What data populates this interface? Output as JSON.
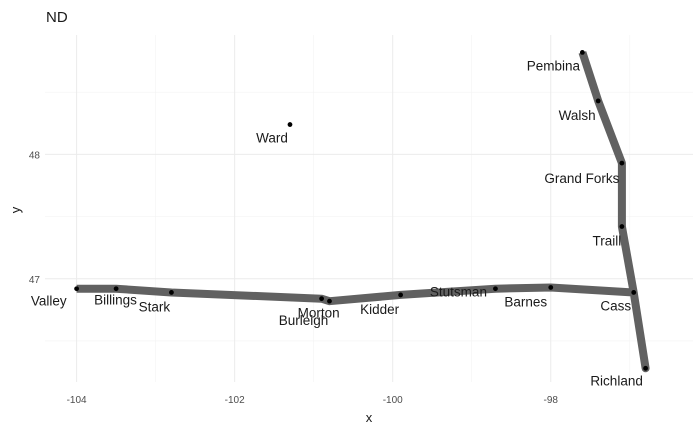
{
  "chart_data": {
    "type": "scatter",
    "title": "ND",
    "xlabel": "x",
    "ylabel": "y",
    "xlim": [
      -104.4,
      -96.2
    ],
    "ylim": [
      46.17,
      48.96
    ],
    "x_ticks": [
      -104,
      -102,
      -100,
      -98
    ],
    "x_tick_labels": [
      "-104",
      "-102",
      "-100",
      "-98"
    ],
    "y_ticks": [
      47,
      48
    ],
    "y_tick_labels": [
      "47",
      "48"
    ],
    "grid": true,
    "legend": "none",
    "points": [
      {
        "label": "Valley",
        "x": -104.0,
        "y": 46.92
      },
      {
        "label": "Billings",
        "x": -103.5,
        "y": 46.92
      },
      {
        "label": "Stark",
        "x": -102.8,
        "y": 46.89
      },
      {
        "label": "Morton",
        "x": -100.9,
        "y": 46.84
      },
      {
        "label": "Burleigh",
        "x": -100.8,
        "y": 46.82
      },
      {
        "label": "Kidder",
        "x": -99.9,
        "y": 46.87
      },
      {
        "label": "Stutsman",
        "x": -98.7,
        "y": 46.92
      },
      {
        "label": "Barnes",
        "x": -98.0,
        "y": 46.93
      },
      {
        "label": "Cass",
        "x": -96.95,
        "y": 46.89
      },
      {
        "label": "Richland",
        "x": -96.8,
        "y": 46.28
      },
      {
        "label": "Traill",
        "x": -97.1,
        "y": 47.42
      },
      {
        "label": "Grand Forks",
        "x": -97.1,
        "y": 47.93
      },
      {
        "label": "Walsh",
        "x": -97.4,
        "y": 48.43
      },
      {
        "label": "Pembina",
        "x": -97.6,
        "y": 48.82
      },
      {
        "label": "Ward",
        "x": -101.3,
        "y": 48.24
      }
    ],
    "path_order": [
      "Valley",
      "Billings",
      "Stark",
      "Morton",
      "Burleigh",
      "Kidder",
      "Stutsman",
      "Barnes",
      "Cass",
      "Richland",
      "Cass",
      "Traill",
      "Grand Forks",
      "Walsh",
      "Pembina"
    ]
  }
}
